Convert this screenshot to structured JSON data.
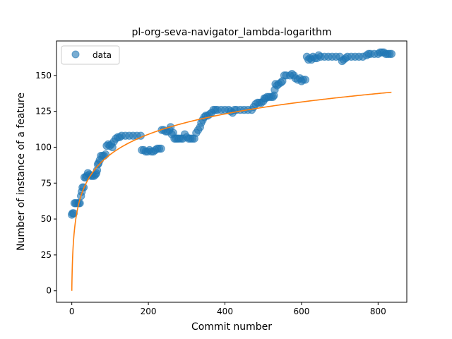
{
  "chart_data": {
    "type": "scatter",
    "title": "pl-org-seva-navigator_lambda-logarithm",
    "xlabel": "Commit number",
    "ylabel": "Number of instance of a feature",
    "xlim": [
      -40,
      875
    ],
    "ylim": [
      -8,
      174
    ],
    "xticks": [
      0,
      200,
      400,
      600,
      800
    ],
    "yticks": [
      0,
      25,
      50,
      75,
      100,
      125,
      150
    ],
    "grid": false,
    "legend": {
      "position": "top-left",
      "entries": [
        "data"
      ]
    },
    "colors": {
      "data": "#1f77b4",
      "fit": "#ff7f0e"
    },
    "series": [
      {
        "name": "data",
        "kind": "scatter",
        "points": [
          [
            0,
            53
          ],
          [
            2,
            54
          ],
          [
            5,
            54
          ],
          [
            7,
            61
          ],
          [
            10,
            61
          ],
          [
            14,
            61
          ],
          [
            18,
            61
          ],
          [
            21,
            61
          ],
          [
            24,
            66
          ],
          [
            26,
            69
          ],
          [
            28,
            72
          ],
          [
            31,
            72
          ],
          [
            33,
            79
          ],
          [
            36,
            79
          ],
          [
            39,
            80
          ],
          [
            42,
            82
          ],
          [
            46,
            81
          ],
          [
            50,
            80
          ],
          [
            54,
            80
          ],
          [
            58,
            80
          ],
          [
            62,
            81
          ],
          [
            64,
            82
          ],
          [
            66,
            84
          ],
          [
            68,
            88
          ],
          [
            70,
            89
          ],
          [
            73,
            91
          ],
          [
            76,
            94
          ],
          [
            80,
            94
          ],
          [
            84,
            94
          ],
          [
            88,
            95
          ],
          [
            91,
            101
          ],
          [
            95,
            102
          ],
          [
            99,
            101
          ],
          [
            103,
            102
          ],
          [
            106,
            100
          ],
          [
            110,
            104
          ],
          [
            115,
            106
          ],
          [
            120,
            107
          ],
          [
            125,
            107
          ],
          [
            130,
            108
          ],
          [
            140,
            108
          ],
          [
            150,
            108
          ],
          [
            160,
            108
          ],
          [
            170,
            108
          ],
          [
            180,
            108
          ],
          [
            183,
            98
          ],
          [
            188,
            98
          ],
          [
            193,
            97
          ],
          [
            198,
            97
          ],
          [
            203,
            98
          ],
          [
            208,
            97
          ],
          [
            213,
            97
          ],
          [
            218,
            98
          ],
          [
            223,
            99
          ],
          [
            228,
            99
          ],
          [
            233,
            99
          ],
          [
            235,
            112
          ],
          [
            240,
            112
          ],
          [
            245,
            111
          ],
          [
            250,
            111
          ],
          [
            255,
            112
          ],
          [
            258,
            114
          ],
          [
            261,
            109
          ],
          [
            265,
            110
          ],
          [
            268,
            106
          ],
          [
            272,
            106
          ],
          [
            276,
            106
          ],
          [
            280,
            106
          ],
          [
            285,
            106
          ],
          [
            290,
            106
          ],
          [
            295,
            109
          ],
          [
            300,
            107
          ],
          [
            305,
            106
          ],
          [
            310,
            106
          ],
          [
            315,
            106
          ],
          [
            320,
            106
          ],
          [
            325,
            110
          ],
          [
            330,
            112
          ],
          [
            335,
            114
          ],
          [
            338,
            117
          ],
          [
            342,
            119
          ],
          [
            346,
            121
          ],
          [
            350,
            122
          ],
          [
            355,
            122
          ],
          [
            360,
            123
          ],
          [
            365,
            124
          ],
          [
            370,
            126
          ],
          [
            375,
            126
          ],
          [
            380,
            126
          ],
          [
            390,
            126
          ],
          [
            400,
            126
          ],
          [
            410,
            126
          ],
          [
            415,
            125
          ],
          [
            420,
            124
          ],
          [
            425,
            126
          ],
          [
            430,
            126
          ],
          [
            440,
            126
          ],
          [
            450,
            126
          ],
          [
            460,
            126
          ],
          [
            470,
            126
          ],
          [
            475,
            128
          ],
          [
            480,
            130
          ],
          [
            485,
            131
          ],
          [
            490,
            131
          ],
          [
            495,
            131
          ],
          [
            500,
            132
          ],
          [
            503,
            134
          ],
          [
            506,
            134
          ],
          [
            510,
            135
          ],
          [
            515,
            135
          ],
          [
            520,
            135
          ],
          [
            525,
            135
          ],
          [
            528,
            136
          ],
          [
            530,
            140
          ],
          [
            532,
            144
          ],
          [
            536,
            143
          ],
          [
            540,
            144
          ],
          [
            546,
            145
          ],
          [
            550,
            146
          ],
          [
            555,
            150
          ],
          [
            560,
            150
          ],
          [
            570,
            150
          ],
          [
            575,
            151
          ],
          [
            580,
            150
          ],
          [
            584,
            148
          ],
          [
            590,
            147
          ],
          [
            596,
            148
          ],
          [
            600,
            146
          ],
          [
            604,
            147
          ],
          [
            610,
            147
          ],
          [
            614,
            163
          ],
          [
            618,
            161
          ],
          [
            622,
            162
          ],
          [
            626,
            161
          ],
          [
            630,
            163
          ],
          [
            635,
            162
          ],
          [
            640,
            162
          ],
          [
            645,
            164
          ],
          [
            650,
            163
          ],
          [
            660,
            163
          ],
          [
            670,
            163
          ],
          [
            680,
            163
          ],
          [
            690,
            163
          ],
          [
            700,
            163
          ],
          [
            706,
            160
          ],
          [
            710,
            161
          ],
          [
            715,
            162
          ],
          [
            720,
            163
          ],
          [
            730,
            163
          ],
          [
            740,
            163
          ],
          [
            750,
            163
          ],
          [
            760,
            163
          ],
          [
            770,
            164
          ],
          [
            775,
            165
          ],
          [
            780,
            165
          ],
          [
            790,
            165
          ],
          [
            800,
            165
          ],
          [
            805,
            166
          ],
          [
            810,
            166
          ],
          [
            815,
            166
          ],
          [
            820,
            165
          ],
          [
            825,
            165
          ],
          [
            830,
            165
          ],
          [
            835,
            165
          ]
        ]
      },
      {
        "name": "",
        "kind": "line",
        "equation": "y = 20.55 * ln(x + 1) + 0",
        "xrange": [
          0,
          835
        ]
      }
    ]
  }
}
